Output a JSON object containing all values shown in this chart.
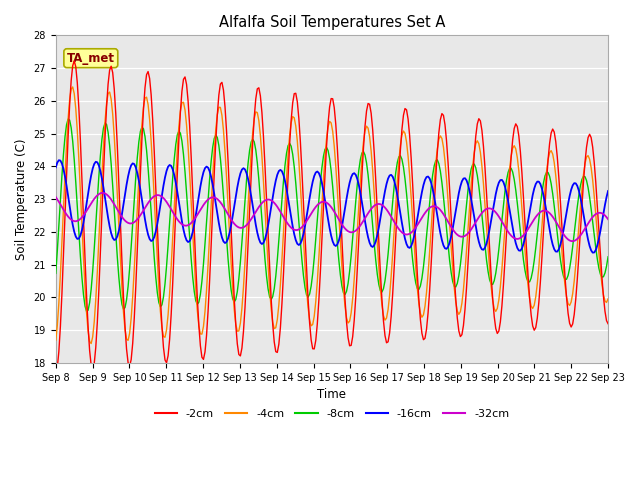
{
  "title": "Alfalfa Soil Temperatures Set A",
  "xlabel": "Time",
  "ylabel": "Soil Temperature (C)",
  "ylim": [
    18.0,
    28.0
  ],
  "yticks": [
    18.0,
    19.0,
    20.0,
    21.0,
    22.0,
    23.0,
    24.0,
    25.0,
    26.0,
    27.0,
    28.0
  ],
  "date_labels": [
    "Sep 8",
    "Sep 9",
    "Sep 10",
    "Sep 11",
    "Sep 12",
    "Sep 13",
    "Sep 14",
    "Sep 15",
    "Sep 16",
    "Sep 17",
    "Sep 18",
    "Sep 19",
    "Sep 20",
    "Sep 21",
    "Sep 22",
    "Sep 23"
  ],
  "colors": {
    "-2cm": "#ff0000",
    "-4cm": "#ff8800",
    "-8cm": "#00cc00",
    "-16cm": "#0000ff",
    "-32cm": "#cc00cc"
  },
  "legend_label": "TA_met",
  "axes_bg_color": "#e8e8e8",
  "fig_bg_color": "#ffffff",
  "annotation_box_color": "#ffff99",
  "annotation_text_color": "#880000",
  "annotation_edge_color": "#aaaa00"
}
